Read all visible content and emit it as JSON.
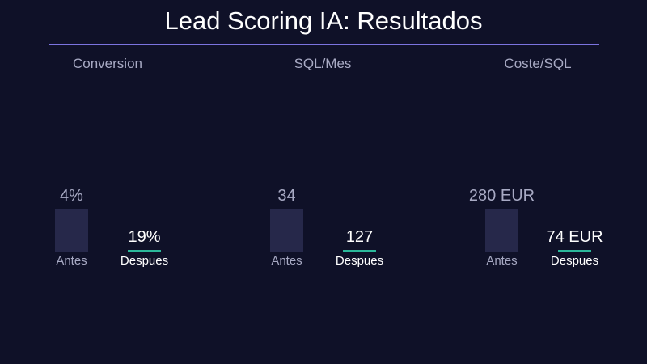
{
  "title": "Lead Scoring IA: Resultados",
  "colors": {
    "background": "#0f1128",
    "divider": "#7b74e0",
    "before_bar": "#26284a",
    "after_bar": "#2bb89a",
    "muted_text": "#a8aac4",
    "bright_text": "#ffffff"
  },
  "chart_data": [
    {
      "type": "bar",
      "title": "Conversion",
      "categories": [
        "Antes",
        "Despues"
      ],
      "values": [
        4,
        19
      ],
      "value_labels": [
        "4%",
        "19%"
      ],
      "unit": "%"
    },
    {
      "type": "bar",
      "title": "SQL/Mes",
      "categories": [
        "Antes",
        "Despues"
      ],
      "values": [
        34,
        127
      ],
      "value_labels": [
        "34",
        "127"
      ],
      "unit": ""
    },
    {
      "type": "bar",
      "title": "Coste/SQL",
      "categories": [
        "Antes",
        "Despues"
      ],
      "values": [
        280,
        74
      ],
      "value_labels": [
        "280 EUR",
        "74 EUR"
      ],
      "unit": "EUR"
    }
  ]
}
